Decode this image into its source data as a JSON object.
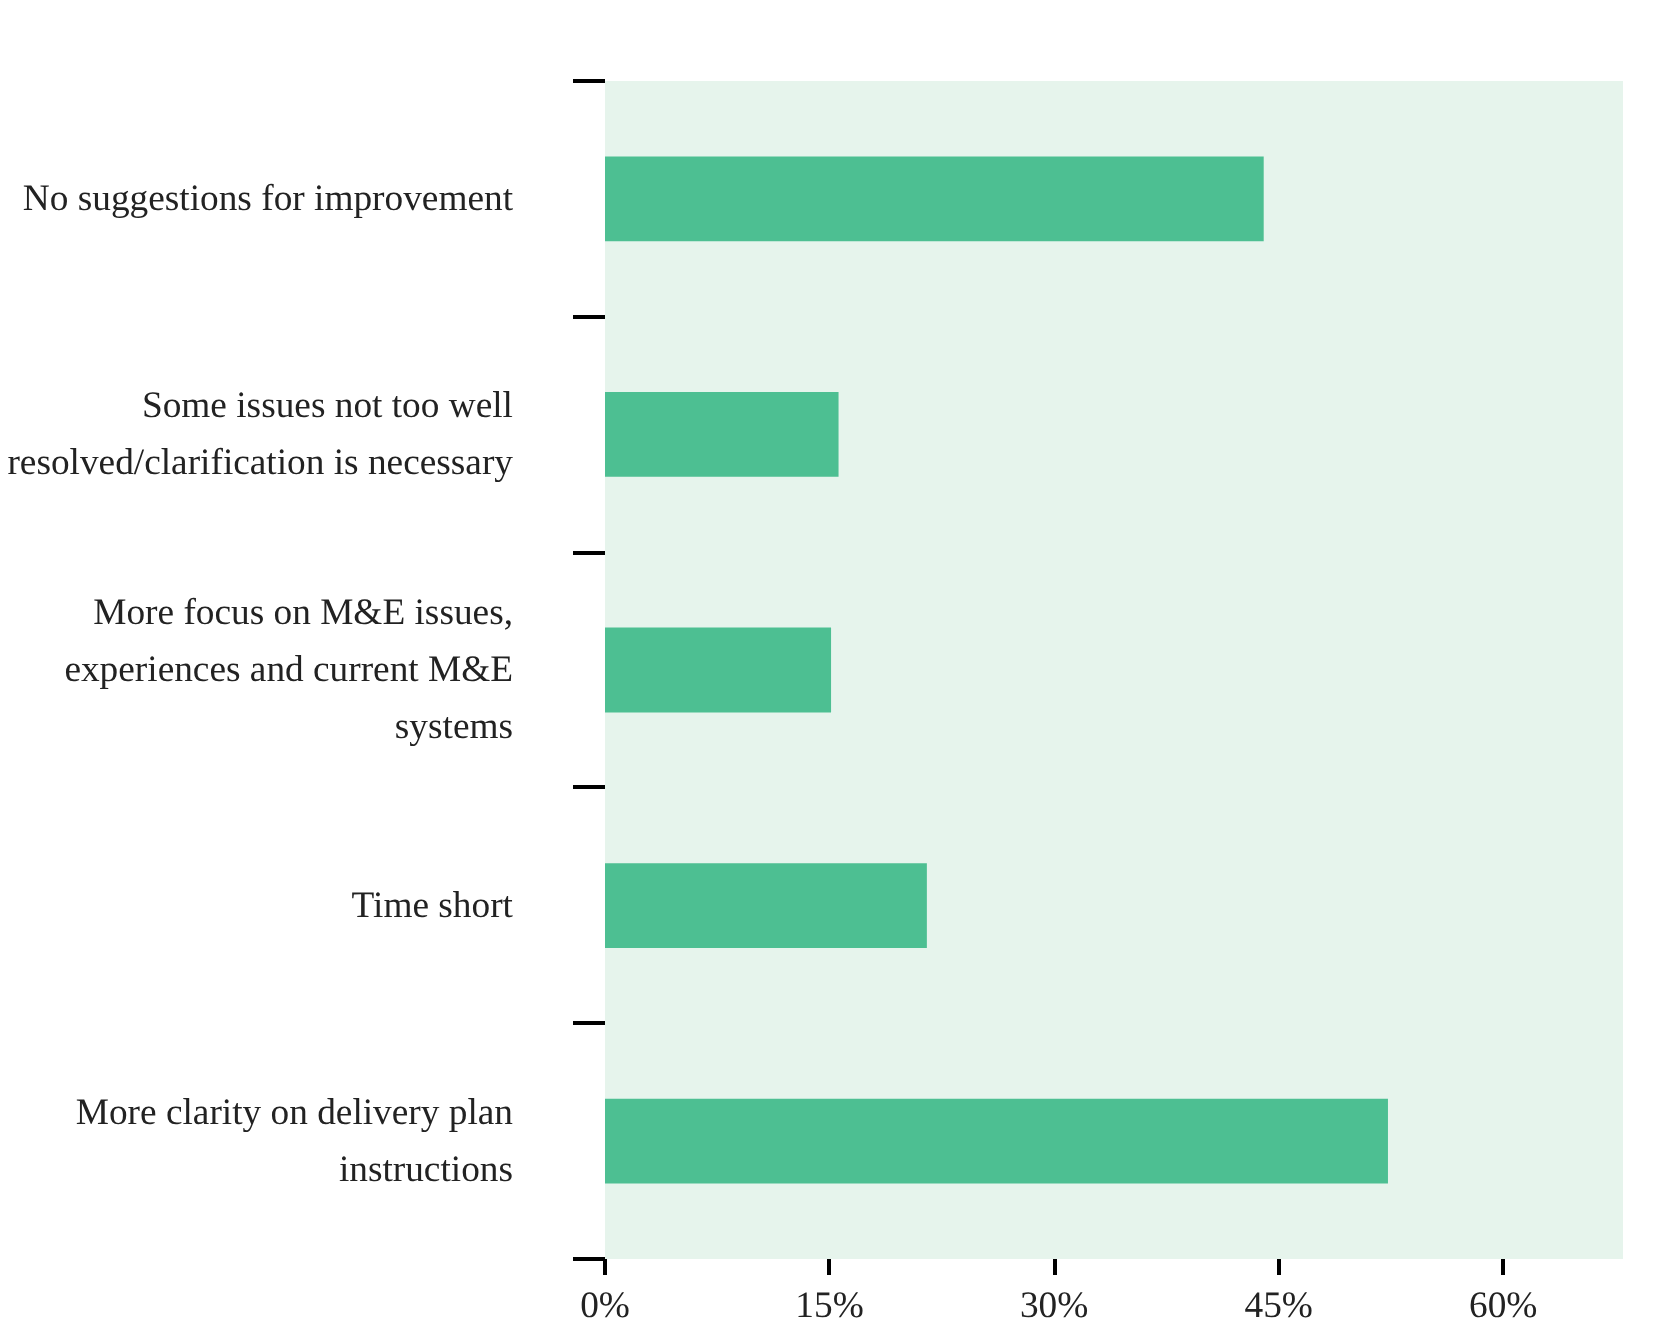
{
  "chart_data": {
    "type": "bar",
    "orientation": "horizontal",
    "categories": [
      "No suggestions for improvement",
      "Some issues not too well\nresolved/clarification is necessary",
      "More focus on M&E issues,\nexperiences and current M&E\nsystems",
      "Time short",
      "More clarity on delivery plan\ninstructions"
    ],
    "values": [
      44,
      15.6,
      15.1,
      21.5,
      52.3
    ],
    "color": "#4dbf92",
    "xlim": [
      0,
      68
    ],
    "xticks": [
      {
        "value": 0,
        "label": "0%"
      },
      {
        "value": 15,
        "label": "15%"
      },
      {
        "value": 30,
        "label": "30%"
      },
      {
        "value": 45,
        "label": "45%"
      },
      {
        "value": 60,
        "label": "60%"
      }
    ],
    "grid": false
  }
}
